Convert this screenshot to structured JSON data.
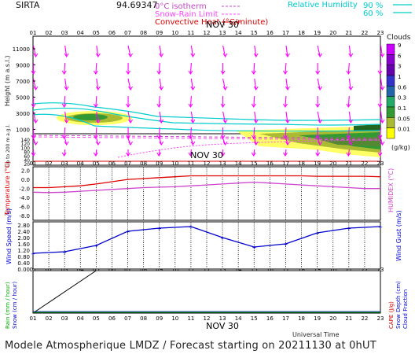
{
  "header": {
    "site": "SIRTA",
    "coords": "94.69347",
    "legend_top": [
      {
        "label": "0°C isotherm",
        "color": "#cc44cc",
        "dash": "dashed"
      },
      {
        "label": "Snow-Rain Limit",
        "color": "#ff44ff",
        "dash": "dashed"
      },
      {
        "label": "Convective Heat (°C/minute)",
        "color": "#dd0000",
        "dash": "solid"
      }
    ],
    "rh_label": "Relative Humidity",
    "rh_levels": [
      "90 %",
      "60 %"
    ],
    "rh_color": "#00cccc"
  },
  "hours": [
    "01",
    "02",
    "03",
    "04",
    "05",
    "06",
    "07",
    "08",
    "09",
    "10",
    "11",
    "12",
    "13",
    "14",
    "15",
    "16",
    "17",
    "18",
    "19",
    "20",
    "21",
    "22",
    "23"
  ],
  "date_label": "NOV 30",
  "panel1": {
    "ylabel": "Height (m a.s.l.)",
    "ylabel2": "Up to 200 m a.g.l.",
    "yticks_upper": [
      "11000",
      "9000",
      "7000",
      "5000",
      "3000",
      "1000"
    ],
    "yticks_lower": [
      "140",
      "120",
      "100",
      "80",
      "60",
      "40",
      "20"
    ],
    "colorbar_title": "Clouds",
    "colorbar_unit": "(g/kg)",
    "colorbar_levels": [
      "9",
      "6",
      "3",
      "1",
      "0.6",
      "0.3",
      "0.1",
      "0.05",
      "0.01"
    ],
    "colorbar_colors": [
      "#cc00ff",
      "#8800cc",
      "#6600aa",
      "#3333cc",
      "#2266aa",
      "#22aa66",
      "#339933",
      "#aabb33",
      "#ffff00"
    ]
  },
  "panel2": {
    "ylabel_left": "Temperature (°C)",
    "ylabel_right": "HUMIDEX (°C)",
    "yticks": [
      "2.0",
      "0.0",
      "-2.0",
      "-4.0",
      "-6.0",
      "-8.0"
    ]
  },
  "panel3": {
    "ylabel_left": "Wind Speed (m/s)",
    "ylabel_right": "Wind Gust (m/s)",
    "yticks": [
      "2.80",
      "2.40",
      "2.00",
      "1.60",
      "1.20",
      "0.80",
      "0.40",
      "0.00"
    ]
  },
  "panel4": {
    "ylabel_left1": "Rain (mm / hour)",
    "ylabel_left2": "Snow (cm / hour)",
    "ylabel_right1": "CAPE (J/g)",
    "ylabel_right2": "Snow Depth (cm)",
    "ylabel_right3": "Cloud Fraction",
    "xlabel": "Universal Time"
  },
  "footer": "Modele Atmospherique LMDZ / Forecast starting on 20211130 at 0hUT",
  "chart_data": [
    {
      "type": "line",
      "title": "Temperature",
      "x": [
        "01",
        "02",
        "03",
        "04",
        "05",
        "06",
        "07",
        "08",
        "09",
        "10",
        "11",
        "12",
        "13",
        "14",
        "15",
        "16",
        "17",
        "18",
        "19",
        "20",
        "21",
        "22",
        "23"
      ],
      "series": [
        {
          "name": "Temperature",
          "color": "#dd0000",
          "values": [
            -1.8,
            -1.8,
            -1.6,
            -1.4,
            -1.0,
            -0.5,
            0.0,
            0.2,
            0.4,
            0.6,
            0.8,
            0.8,
            0.8,
            0.8,
            0.8,
            0.8,
            0.8,
            0.8,
            0.7,
            0.7,
            0.7,
            0.7,
            0.6
          ]
        },
        {
          "name": "HUMIDEX",
          "color": "#cc44cc",
          "values": [
            -2.8,
            -2.9,
            -2.8,
            -2.6,
            -2.4,
            -2.2,
            -2.0,
            -1.8,
            -1.7,
            -1.6,
            -1.4,
            -1.2,
            -1.0,
            -0.8,
            -0.6,
            -0.8,
            -1.0,
            -1.2,
            -1.4,
            -1.6,
            -1.8,
            -2.0,
            -2.0
          ]
        }
      ],
      "ylim": [
        -9,
        2.8
      ]
    },
    {
      "type": "line",
      "title": "Wind Speed",
      "x": [
        "01",
        "03",
        "05",
        "07",
        "09",
        "11",
        "13",
        "15",
        "17",
        "19",
        "21",
        "23"
      ],
      "series": [
        {
          "name": "Wind Speed",
          "color": "#0000cc",
          "values": [
            1.0,
            1.1,
            1.5,
            2.4,
            2.6,
            2.7,
            2.0,
            1.4,
            1.6,
            2.3,
            2.6,
            2.7
          ]
        }
      ],
      "ylim": [
        0,
        3.0
      ]
    },
    {
      "type": "line",
      "title": "Rain",
      "x": [
        "01",
        "05"
      ],
      "series": [
        {
          "name": "Rain",
          "color": "#000000",
          "values": [
            0.0,
            1.0
          ]
        }
      ],
      "ylim": [
        0,
        1
      ]
    }
  ]
}
